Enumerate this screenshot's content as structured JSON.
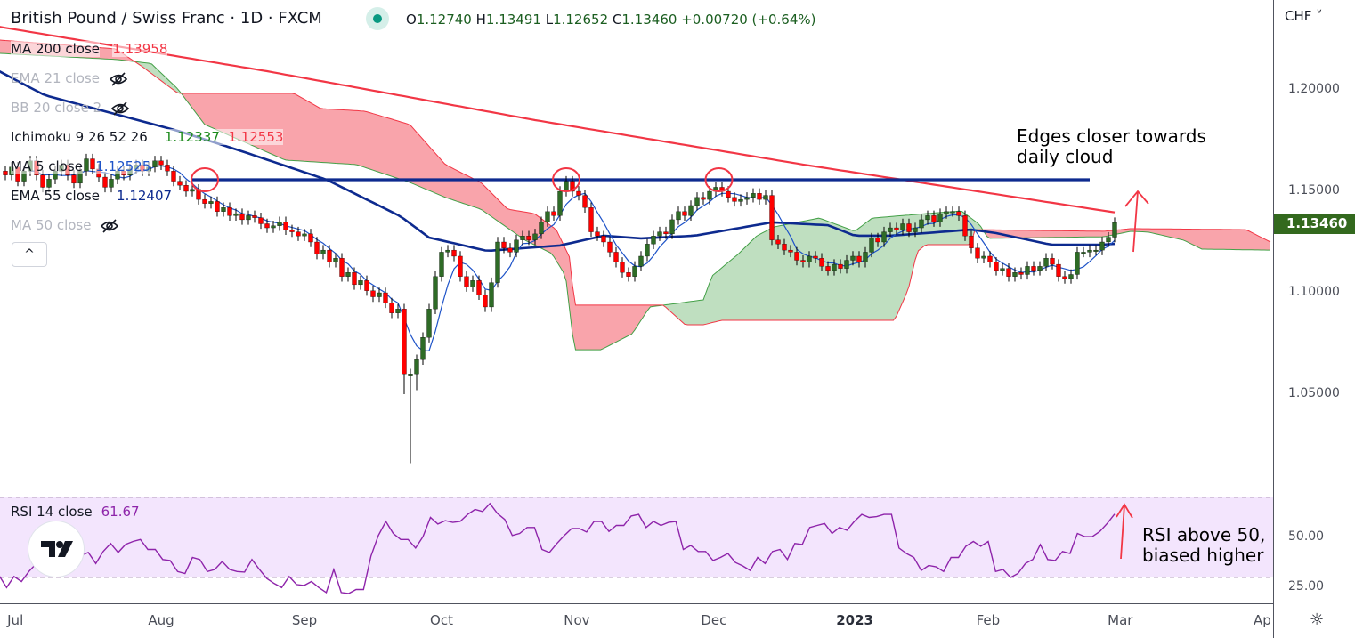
{
  "header": {
    "title": "British Pound / Swiss Franc · 1D · FXCM",
    "ohlc": {
      "o_label": "O",
      "o": "1.12740",
      "h_label": "H",
      "h": "1.13491",
      "l_label": "L",
      "l": "1.12652",
      "c_label": "C",
      "c": "1.13460",
      "change": "+0.00720 (+0.64%)"
    }
  },
  "legend": {
    "ma200": {
      "label": "MA 200 close",
      "value": "1.13958",
      "color": "#f23645"
    },
    "ema21": {
      "label": "EMA 21 close"
    },
    "bb20": {
      "label": "BB 20 close 2"
    },
    "ichimoku": {
      "label": "Ichimoku 9 26 52 26",
      "value_a": "1.12337",
      "value_b": "1.12553"
    },
    "ma5": {
      "label": "MA 5 close",
      "value": "1.12525"
    },
    "ema55": {
      "label": "EMA 55 close",
      "value": "1.12407"
    },
    "ma50": {
      "label": "MA 50 close"
    },
    "collapse_label": "^"
  },
  "rsi_legend": {
    "label": "RSI 14 close",
    "value": "61.67"
  },
  "price_axis": {
    "currency": "CHF ˅",
    "ticks": [
      "1.20000",
      "1.15000",
      "1.10000",
      "1.05000"
    ],
    "last_price": "1.13460",
    "rsi_ticks": [
      "50.00",
      "25.00"
    ]
  },
  "annotations": {
    "cloud_note": "Edges closer towards\ndaily cloud",
    "rsi_note": "RSI above 50,\nbiased higher"
  },
  "colors": {
    "up": "#2e6b26",
    "down": "#ff0000",
    "ma200": "#f23645",
    "ema55": "#0d2a8f",
    "ma5": "#1e53c8",
    "resistance": "#0d2a8f",
    "cloud_up": "#43a047",
    "cloud_down": "#f23645",
    "rsi": "#8e24aa"
  },
  "chart_data": {
    "type": "candlestick",
    "title": "British Pound / Swiss Franc · 1D · FXCM",
    "ylim": [
      1.004,
      1.2443
    ],
    "yticks": [
      1.2,
      1.15,
      1.1,
      1.05
    ],
    "x_months": [
      {
        "label": "Jul",
        "bar": 1.6
      },
      {
        "label": "Aug",
        "bar": 25
      },
      {
        "label": "Sep",
        "bar": 48
      },
      {
        "label": "Oct",
        "bar": 70
      },
      {
        "label": "Nov",
        "bar": 91.7
      },
      {
        "label": "Dec",
        "bar": 113.7
      },
      {
        "label": "2023",
        "bar": 136.3,
        "bold": true
      },
      {
        "label": "Feb",
        "bar": 157.7
      },
      {
        "label": "Mar",
        "bar": 178.9
      },
      {
        "label": "Ap",
        "bar": 201.7
      }
    ],
    "closes": [
      1.158,
      1.162,
      1.155,
      1.16,
      1.165,
      1.158,
      1.152,
      1.156,
      1.16,
      1.163,
      1.158,
      1.154,
      1.16,
      1.166,
      1.161,
      1.157,
      1.152,
      1.156,
      1.16,
      1.158,
      1.161,
      1.163,
      1.16,
      1.162,
      1.165,
      1.163,
      1.16,
      1.155,
      1.153,
      1.15,
      1.151,
      1.146,
      1.144,
      1.145,
      1.14,
      1.142,
      1.138,
      1.139,
      1.136,
      1.138,
      1.137,
      1.134,
      1.132,
      1.133,
      1.135,
      1.131,
      1.13,
      1.128,
      1.129,
      1.125,
      1.119,
      1.121,
      1.115,
      1.117,
      1.108,
      1.11,
      1.104,
      1.106,
      1.101,
      1.098,
      1.1,
      1.095,
      1.09,
      1.092,
      1.06,
      1.06,
      1.067,
      1.078,
      1.092,
      1.108,
      1.12,
      1.121,
      1.118,
      1.108,
      1.103,
      1.106,
      1.099,
      1.093,
      1.105,
      1.125,
      1.122,
      1.12,
      1.126,
      1.128,
      1.126,
      1.129,
      1.135,
      1.14,
      1.138,
      1.15,
      1.155,
      1.15,
      1.148,
      1.142,
      1.13,
      1.128,
      1.125,
      1.12,
      1.115,
      1.11,
      1.108,
      1.113,
      1.118,
      1.124,
      1.128,
      1.13,
      1.129,
      1.136,
      1.14,
      1.138,
      1.143,
      1.147,
      1.146,
      1.15,
      1.152,
      1.15,
      1.147,
      1.145,
      1.146,
      1.147,
      1.149,
      1.146,
      1.148,
      1.126,
      1.124,
      1.121,
      1.12,
      1.116,
      1.115,
      1.118,
      1.117,
      1.113,
      1.111,
      1.114,
      1.112,
      1.116,
      1.118,
      1.115,
      1.12,
      1.127,
      1.125,
      1.13,
      1.132,
      1.131,
      1.134,
      1.13,
      1.132,
      1.136,
      1.138,
      1.135,
      1.139,
      1.14,
      1.14,
      1.138,
      1.128,
      1.122,
      1.117,
      1.118,
      1.115,
      1.111,
      1.112,
      1.108,
      1.11,
      1.109,
      1.113,
      1.111,
      1.113,
      1.117,
      1.114,
      1.108,
      1.107,
      1.109,
      1.12,
      1.12,
      1.121,
      1.121,
      1.125,
      1.1274,
      1.1346
    ],
    "wick_extremes": {
      "65": {
        "low": 1.016
      },
      "64": {
        "low": 1.05
      },
      "66": {
        "low": 1.052
      }
    },
    "ma200": [
      [
        -1,
        1.2311
      ],
      [
        42,
        1.2092
      ],
      [
        85,
        1.1851
      ],
      [
        128,
        1.1632
      ],
      [
        156,
        1.15
      ],
      [
        178,
        1.1396
      ]
    ],
    "ema55": [
      [
        -1,
        1.2092
      ],
      [
        6.3,
        1.1974
      ],
      [
        27.7,
        1.1798
      ],
      [
        38,
        1.1697
      ],
      [
        51.6,
        1.1557
      ],
      [
        63.4,
        1.1377
      ],
      [
        68,
        1.1272
      ],
      [
        73,
        1.1237
      ],
      [
        77.3,
        1.1206
      ],
      [
        89,
        1.1233
      ],
      [
        96,
        1.1281
      ],
      [
        102,
        1.1268
      ],
      [
        110.6,
        1.1281
      ],
      [
        123,
        1.1347
      ],
      [
        132,
        1.1333
      ],
      [
        136.3,
        1.1281
      ],
      [
        142,
        1.1281
      ],
      [
        155,
        1.1311
      ],
      [
        159,
        1.1294
      ],
      [
        167.7,
        1.1237
      ],
      [
        176,
        1.1237
      ],
      [
        178,
        1.1241
      ]
    ],
    "ichimoku_span_a": [
      [
        -1,
        1.218
      ],
      [
        17.7,
        1.215
      ],
      [
        23.4,
        1.213
      ],
      [
        27.7,
        1.2004
      ],
      [
        32,
        1.1829
      ],
      [
        44.9,
        1.1654
      ],
      [
        56.3,
        1.1632
      ],
      [
        64.9,
        1.1544
      ],
      [
        70.6,
        1.147
      ],
      [
        76.3,
        1.1412
      ],
      [
        83.4,
        1.1259
      ],
      [
        87.7,
        1.1193
      ],
      [
        89.9,
        1.1083
      ],
      [
        91.3,
        1.0719
      ],
      [
        95.6,
        1.0719
      ],
      [
        100.6,
        1.0798
      ],
      [
        103.4,
        1.093
      ],
      [
        112,
        1.0965
      ],
      [
        113.4,
        1.1083
      ],
      [
        117.7,
        1.1193
      ],
      [
        120.6,
        1.1281
      ],
      [
        123.4,
        1.1325
      ],
      [
        130.6,
        1.1368
      ],
      [
        136.3,
        1.1303
      ],
      [
        139.1,
        1.1368
      ],
      [
        147.7,
        1.139
      ],
      [
        153.4,
        1.1403
      ],
      [
        156.3,
        1.1337
      ],
      [
        157.7,
        1.1268
      ],
      [
        176.3,
        1.1276
      ],
      [
        180.6,
        1.1303
      ],
      [
        183.4,
        1.1299
      ],
      [
        189.1,
        1.1259
      ],
      [
        192,
        1.1215
      ],
      [
        203,
        1.121
      ]
    ],
    "ichimoku_span_b": [
      [
        -1,
        1.2246
      ],
      [
        17.7,
        1.2202
      ],
      [
        22,
        1.2114
      ],
      [
        27.7,
        1.1983
      ],
      [
        46.3,
        1.1983
      ],
      [
        50.6,
        1.1908
      ],
      [
        57.7,
        1.1895
      ],
      [
        64.9,
        1.1829
      ],
      [
        70.6,
        1.1632
      ],
      [
        73.4,
        1.1588
      ],
      [
        76.3,
        1.1544
      ],
      [
        80.6,
        1.1412
      ],
      [
        84.9,
        1.139
      ],
      [
        88.4,
        1.1311
      ],
      [
        90.6,
        1.1171
      ],
      [
        91.3,
        1.0939
      ],
      [
        105.6,
        1.0939
      ],
      [
        109.1,
        1.0842
      ],
      [
        112,
        1.0842
      ],
      [
        114.9,
        1.0864
      ],
      [
        142.7,
        1.0864
      ],
      [
        144.9,
        1.1018
      ],
      [
        146.3,
        1.1202
      ],
      [
        147.7,
        1.1237
      ],
      [
        154.9,
        1.1237
      ],
      [
        155.6,
        1.1311
      ],
      [
        176.3,
        1.1303
      ],
      [
        180.6,
        1.1316
      ],
      [
        199.1,
        1.1311
      ],
      [
        203,
        1.125
      ]
    ],
    "resistance_line": {
      "price": 1.1557,
      "from_bar": 30,
      "to_bar": 174
    },
    "highlighted_tops_bars": [
      32,
      90,
      114.5
    ],
    "rsi": {
      "ylim": [
        0,
        100
      ],
      "upper_band": 70,
      "lower_band": 30,
      "values": [
        31,
        25,
        30.5,
        28,
        33,
        37,
        38,
        39,
        39,
        36,
        44,
        41,
        42.5,
        37,
        43,
        47,
        42.5,
        46.5,
        48,
        49,
        44,
        44,
        39,
        38.5,
        33,
        32,
        40,
        39,
        33,
        34,
        38,
        34,
        33,
        32.7,
        39,
        34,
        29.5,
        27,
        25,
        30.5,
        26.5,
        26,
        28,
        25,
        22.5,
        34,
        22.5,
        22,
        24,
        24,
        40.7,
        51,
        58,
        52,
        49,
        49,
        44.7,
        50.4,
        60,
        56.7,
        58.4,
        57.5,
        58,
        61.5,
        64,
        63,
        67,
        62,
        59,
        51,
        52,
        55,
        55,
        44,
        42.5,
        47,
        51,
        54.5,
        54.5,
        52.7,
        58,
        58,
        53,
        56,
        56,
        60.7,
        61.5,
        55,
        58,
        56,
        57.5,
        58,
        44,
        46,
        43,
        43,
        38.5,
        40,
        42,
        37.5,
        35.8,
        33.5,
        40,
        37,
        43,
        44,
        39,
        47,
        46.5,
        55,
        56,
        57,
        52,
        55,
        53.6,
        58,
        61.5,
        60,
        60.4,
        61.5,
        61.5,
        44.7,
        42,
        40,
        33.5,
        36,
        35.3,
        33,
        40,
        40,
        45.6,
        48,
        45.6,
        48,
        33,
        34,
        30,
        32,
        37,
        39,
        46.5,
        39,
        38.5,
        43,
        42,
        52,
        50.4,
        50.4,
        53,
        57,
        61.67
      ]
    }
  }
}
